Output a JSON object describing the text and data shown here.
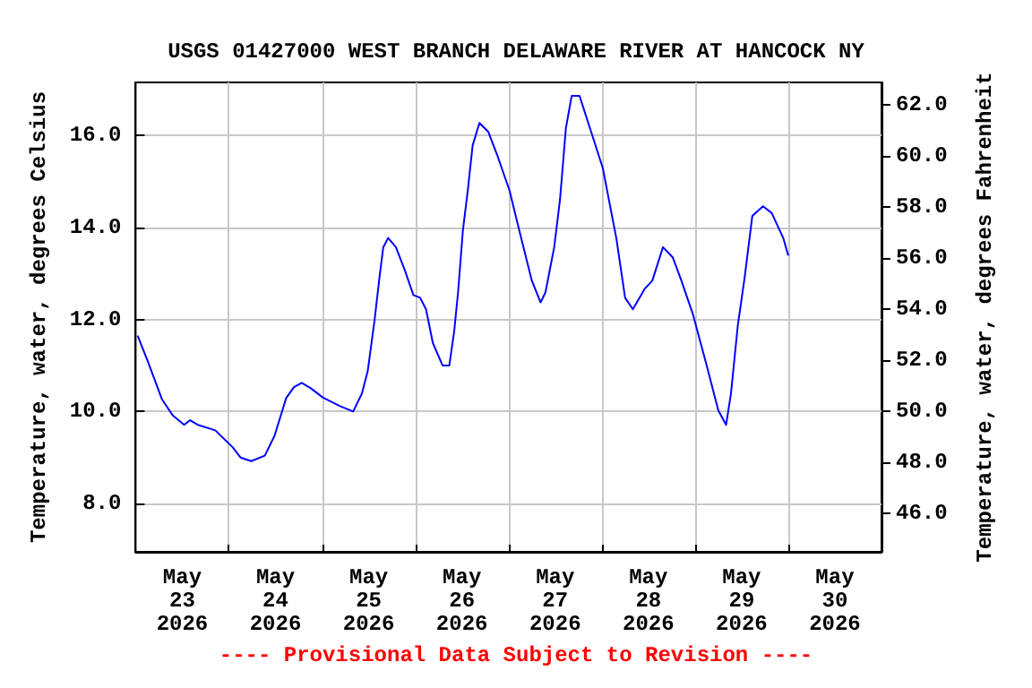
{
  "chart_data": {
    "type": "line",
    "title": "USGS 01427000 WEST BRANCH DELAWARE RIVER AT HANCOCK NY",
    "ylabel": "Temperature, water, degrees Celsius",
    "y2label": "Temperature, water, degrees Fahrenheit",
    "annotations": [
      "---- Provisional Data Subject to Revision ----"
    ],
    "x": [
      "2026-05-23T00:30",
      "2026-05-23T03:00",
      "2026-05-23T06:45",
      "2026-05-23T09:30",
      "2026-05-23T12:30",
      "2026-05-23T14:00",
      "2026-05-23T16:00",
      "2026-05-23T20:30",
      "2026-05-24T01:00",
      "2026-05-24T03:00",
      "2026-05-24T05:45",
      "2026-05-24T09:15",
      "2026-05-24T11:45",
      "2026-05-24T14:45",
      "2026-05-24T16:45",
      "2026-05-24T18:45",
      "2026-05-24T21:00",
      "2026-05-25T00:15",
      "2026-05-25T04:30",
      "2026-05-25T08:00",
      "2026-05-25T10:15",
      "2026-05-25T11:45",
      "2026-05-25T13:30",
      "2026-05-25T14:45",
      "2026-05-25T15:45",
      "2026-05-25T17:00",
      "2026-05-25T19:00",
      "2026-05-25T21:15",
      "2026-05-25T23:30",
      "2026-05-26T01:15",
      "2026-05-26T02:45",
      "2026-05-26T04:30",
      "2026-05-26T07:00",
      "2026-05-26T08:45",
      "2026-05-26T10:00",
      "2026-05-26T11:00",
      "2026-05-26T12:15",
      "2026-05-26T13:30",
      "2026-05-26T14:45",
      "2026-05-26T16:30",
      "2026-05-26T18:45",
      "2026-05-26T21:15",
      "2026-05-27T00:15",
      "2026-05-27T03:00",
      "2026-05-27T06:00",
      "2026-05-27T08:15",
      "2026-05-27T09:30",
      "2026-05-27T11:45",
      "2026-05-27T13:15",
      "2026-05-27T14:45",
      "2026-05-27T16:15",
      "2026-05-27T18:15",
      "2026-05-27T21:15",
      "2026-05-28T00:15",
      "2026-05-28T03:45",
      "2026-05-28T06:00",
      "2026-05-28T08:00",
      "2026-05-28T11:00",
      "2026-05-28T13:00",
      "2026-05-28T15:45",
      "2026-05-28T18:15",
      "2026-05-28T20:30",
      "2026-05-28T23:30",
      "2026-05-29T03:00",
      "2026-05-29T06:00",
      "2026-05-29T08:00",
      "2026-05-29T09:15",
      "2026-05-29T11:00",
      "2026-05-29T12:45",
      "2026-05-29T14:45",
      "2026-05-29T17:30",
      "2026-05-29T19:45",
      "2026-05-29T22:45",
      "2026-05-30T00:00"
    ],
    "series": [
      {
        "color": "#0000ff",
        "values": [
          11.65,
          11.12,
          10.27,
          9.92,
          9.71,
          9.81,
          9.71,
          9.59,
          9.22,
          9.0,
          8.92,
          9.04,
          9.47,
          10.29,
          10.53,
          10.62,
          10.51,
          10.3,
          10.12,
          10.0,
          10.39,
          10.88,
          11.98,
          12.9,
          13.57,
          13.77,
          13.57,
          13.08,
          12.53,
          12.47,
          12.22,
          11.49,
          11.0,
          11.0,
          11.74,
          12.59,
          13.94,
          14.8,
          15.78,
          16.27,
          16.08,
          15.53,
          14.8,
          13.85,
          12.84,
          12.37,
          12.59,
          13.57,
          14.61,
          16.15,
          16.86,
          16.86,
          16.08,
          15.29,
          13.76,
          12.47,
          12.22,
          12.66,
          12.84,
          13.57,
          13.35,
          12.84,
          12.1,
          11.0,
          10.02,
          9.71,
          10.39,
          11.86,
          12.9,
          14.25,
          14.46,
          14.31,
          13.76,
          13.39
        ]
      }
    ],
    "xlim": [
      "2026-05-23T00:00",
      "2026-05-31T00:00"
    ],
    "xticks": [
      {
        "value": "2026-05-23T12:00",
        "label": "May\n23\n2026"
      },
      {
        "value": "2026-05-24T12:00",
        "label": "May\n24\n2026"
      },
      {
        "value": "2026-05-25T12:00",
        "label": "May\n25\n2026"
      },
      {
        "value": "2026-05-26T12:00",
        "label": "May\n26\n2026"
      },
      {
        "value": "2026-05-27T12:00",
        "label": "May\n27\n2026"
      },
      {
        "value": "2026-05-28T12:00",
        "label": "May\n28\n2026"
      },
      {
        "value": "2026-05-29T12:00",
        "label": "May\n29\n2026"
      },
      {
        "value": "2026-05-30T12:00",
        "label": "May\n30\n2026"
      },
      {
        "value": "2026-05-24T00:00",
        "label": null
      },
      {
        "value": "2026-05-25T00:00",
        "label": null
      },
      {
        "value": "2026-05-26T00:00",
        "label": null
      },
      {
        "value": "2026-05-27T00:00",
        "label": null
      },
      {
        "value": "2026-05-28T00:00",
        "label": null
      },
      {
        "value": "2026-05-29T00:00",
        "label": null
      },
      {
        "value": "2026-05-30T00:00",
        "label": null
      }
    ],
    "ylim": [
      6.95,
      17.15
    ],
    "yticks": [
      {
        "value": 8,
        "label": "8.0"
      },
      {
        "value": 10,
        "label": "10.0"
      },
      {
        "value": 12,
        "label": "12.0"
      },
      {
        "value": 14,
        "label": "14.0"
      },
      {
        "value": 16,
        "label": "16.0"
      }
    ],
    "y2lim": [
      44.51,
      62.87
    ],
    "y2ticks": [
      {
        "value": 46,
        "label": "46.0"
      },
      {
        "value": 48,
        "label": "48.0"
      },
      {
        "value": 50,
        "label": "50.0"
      },
      {
        "value": 52,
        "label": "52.0"
      },
      {
        "value": 54,
        "label": "54.0"
      },
      {
        "value": 56,
        "label": "56.0"
      },
      {
        "value": 58,
        "label": "58.0"
      },
      {
        "value": 60,
        "label": "60.0"
      },
      {
        "value": 62,
        "label": "62.0"
      }
    ],
    "grid": true
  }
}
